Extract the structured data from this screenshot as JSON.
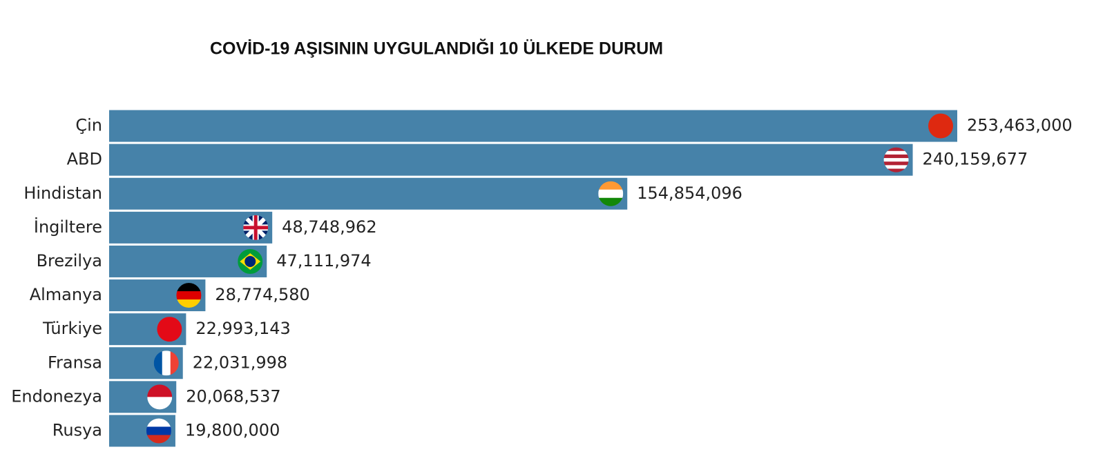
{
  "chart_data": {
    "type": "bar",
    "orientation": "horizontal",
    "title": "COVİD-19 AŞISININ UYGULANDIĞI 10 ÜLKEDE DURUM",
    "categories": [
      "Çin",
      "ABD",
      "Hindistan",
      "İngiltere",
      "Brezilya",
      "Almanya",
      "Türkiye",
      "Fransa",
      "Endonezya",
      "Rusya"
    ],
    "values": [
      253463000,
      240159677,
      154854096,
      48748962,
      47111974,
      28774580,
      22993143,
      22031998,
      20068537,
      19800000
    ],
    "value_labels": [
      "253,463,000",
      "240,159,677",
      "154,854,096",
      "48,748,962",
      "47,111,974",
      "28,774,580",
      "22,993,143",
      "22,031,998",
      "20,068,537",
      "19,800,000"
    ],
    "color": "#4682a9"
  }
}
